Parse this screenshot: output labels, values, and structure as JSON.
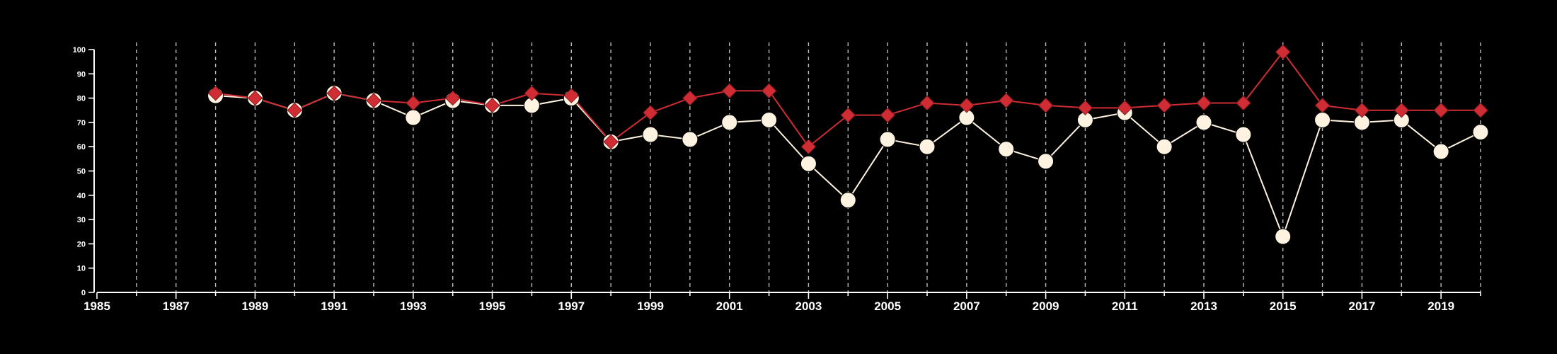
{
  "chart_data": {
    "type": "line",
    "title": "",
    "xlabel": "",
    "ylabel": "",
    "xlim": [
      1985,
      2020
    ],
    "ylim": [
      0,
      100
    ],
    "x_ticks": [
      "1985",
      "1987",
      "1989",
      "1991",
      "1993",
      "1995",
      "1997",
      "1999",
      "2001",
      "2003",
      "2005",
      "2007",
      "2009",
      "2011",
      "2013",
      "2015",
      "2017",
      "2019"
    ],
    "y_ticks": [
      "0",
      "10",
      "20",
      "30",
      "40",
      "50",
      "60",
      "70",
      "80",
      "90",
      "100"
    ],
    "grid": "vertical dashed lines at every year",
    "legend": "none",
    "x": [
      1988,
      1989,
      1990,
      1991,
      1992,
      1993,
      1994,
      1995,
      1996,
      1997,
      1998,
      1999,
      2000,
      2001,
      2002,
      2003,
      2004,
      2005,
      2006,
      2007,
      2008,
      2009,
      2010,
      2011,
      2012,
      2013,
      2014,
      2015,
      2016,
      2017,
      2018,
      2019,
      2020
    ],
    "series": [
      {
        "color": "#fdf3e0",
        "marker": "circle",
        "values": [
          81,
          80,
          75,
          82,
          79,
          72,
          79,
          77,
          77,
          80,
          62,
          65,
          63,
          70,
          71,
          53,
          38,
          63,
          60,
          72,
          59,
          54,
          71,
          74,
          60,
          70,
          65,
          23,
          71,
          70,
          71,
          58,
          66
        ]
      },
      {
        "color": "#d02c34",
        "marker": "diamond",
        "values": [
          82,
          80,
          75,
          82,
          79,
          78,
          80,
          77,
          82,
          81,
          62,
          74,
          80,
          83,
          83,
          60,
          73,
          73,
          78,
          77,
          79,
          77,
          76,
          76,
          77,
          78,
          78,
          99,
          77,
          75,
          75,
          75,
          75
        ]
      }
    ]
  }
}
